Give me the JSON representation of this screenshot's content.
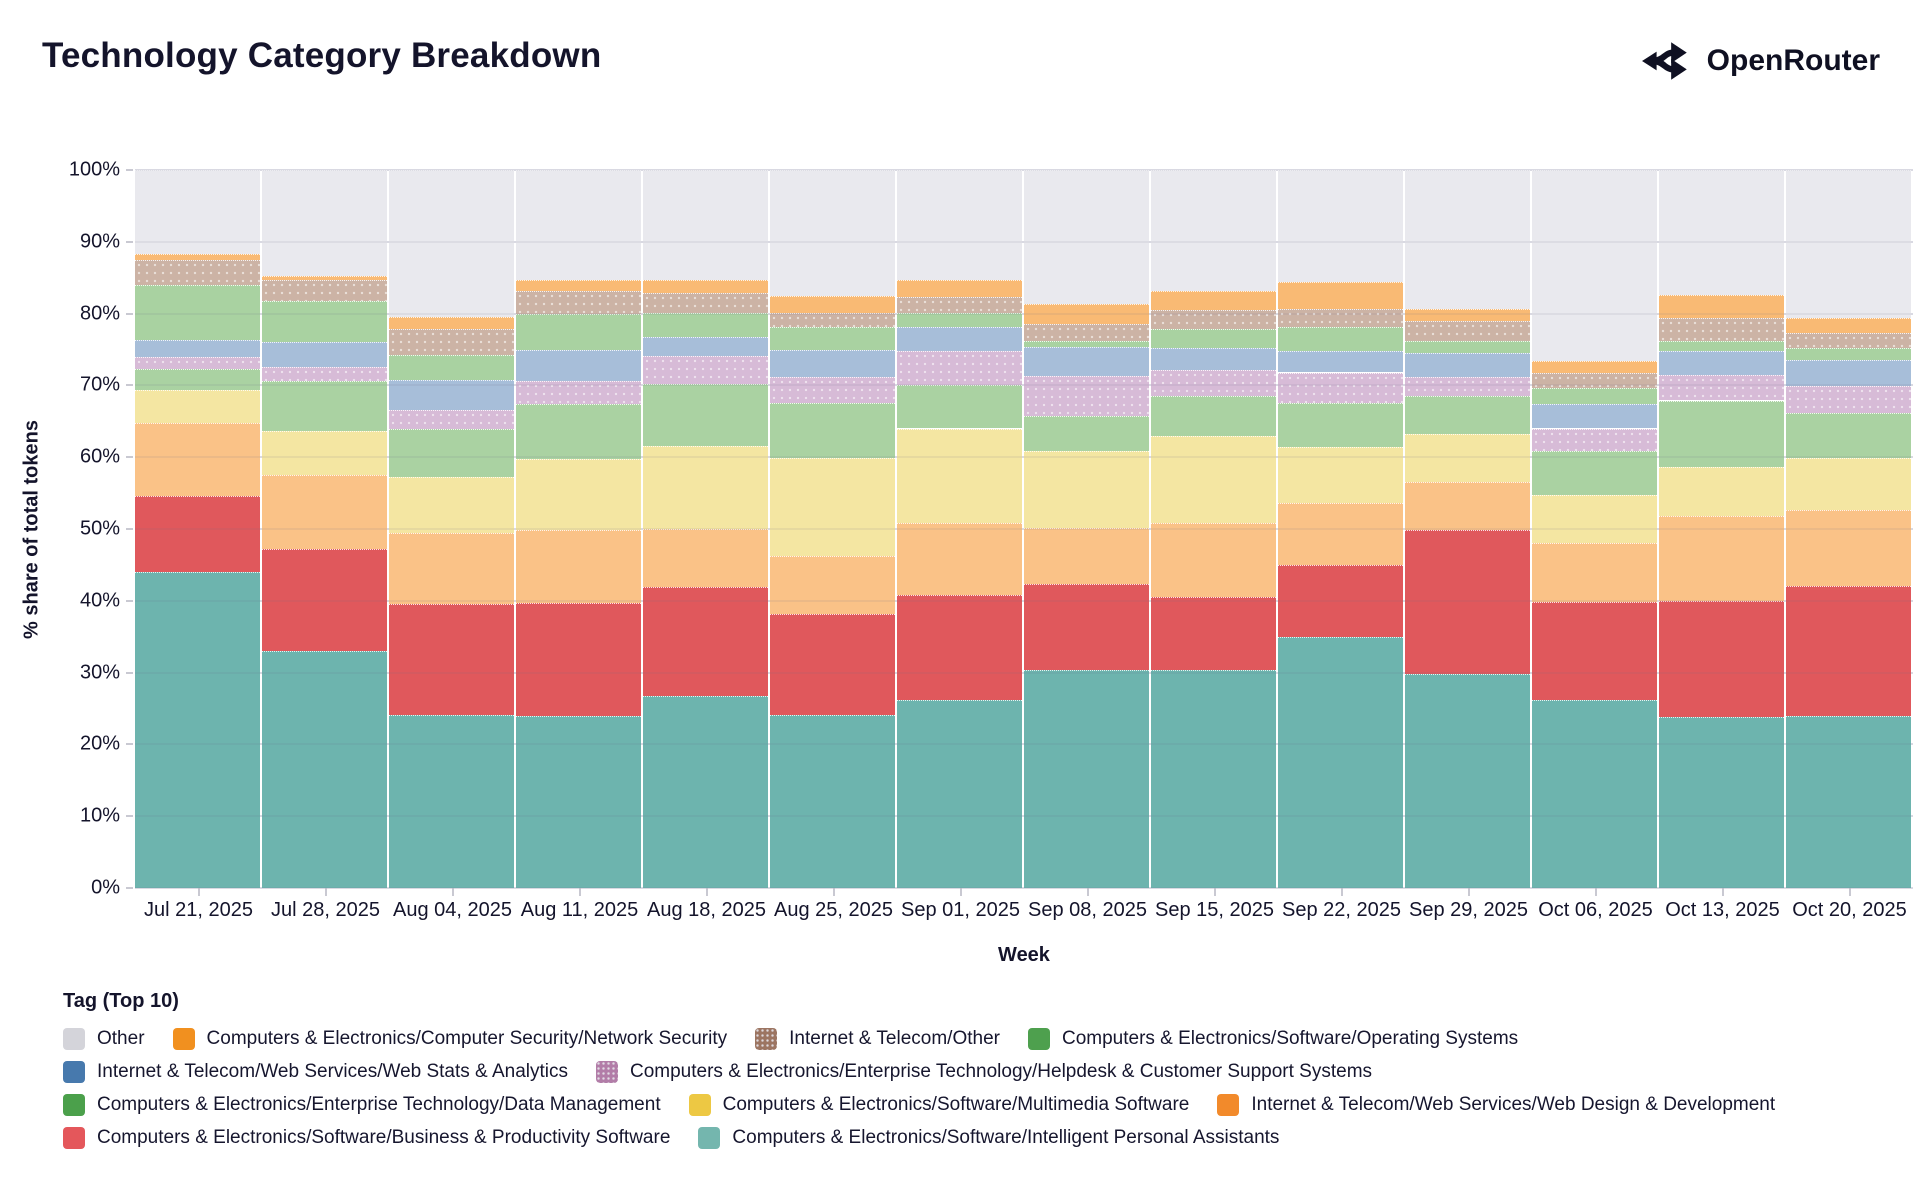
{
  "header": {
    "title": "Technology Category Breakdown",
    "brand": "OpenRouter"
  },
  "chart_data": {
    "type": "bar",
    "stacked": true,
    "title": "Technology Category Breakdown",
    "xlabel": "Week",
    "ylabel": "% share of total tokens",
    "ylim": [
      0,
      100
    ],
    "ytick_step": 10,
    "ytick_suffix": "%",
    "grid": true,
    "legend_title": "Tag (Top 10)",
    "categories": [
      "Jul 21, 2025",
      "Jul 28, 2025",
      "Aug 04, 2025",
      "Aug 11, 2025",
      "Aug 18, 2025",
      "Aug 25, 2025",
      "Sep 01, 2025",
      "Sep 08, 2025",
      "Sep 15, 2025",
      "Sep 22, 2025",
      "Sep 29, 2025",
      "Oct 06, 2025",
      "Oct 13, 2025",
      "Oct 20, 2025"
    ],
    "series": [
      {
        "key": "ipa",
        "name": "Computers & Electronics/Software/Intelligent Personal Assistants",
        "legend_color": "#74b6ae",
        "bar_color": "#6db4ae",
        "pattern": "none",
        "values": [
          44.0,
          33.0,
          24.1,
          24.0,
          26.7,
          24.1,
          26.2,
          30.4,
          30.4,
          34.9,
          29.8,
          26.2,
          23.8,
          24.0
        ]
      },
      {
        "key": "bp",
        "name": "Computers & Electronics/Software/Business & Productivity Software",
        "legend_color": "#e4575b",
        "bar_color": "#e0585c",
        "pattern": "none",
        "values": [
          10.6,
          14.2,
          15.5,
          15.7,
          15.2,
          14.0,
          14.6,
          11.9,
          10.1,
          10.1,
          20.0,
          13.7,
          16.2,
          18.0
        ]
      },
      {
        "key": "wd",
        "name": "Internet & Telecom/Web Services/Web Design & Development",
        "legend_color": "#f28a2b",
        "bar_color": "#fac287",
        "pattern": "none",
        "values": [
          10.1,
          10.3,
          9.9,
          10.2,
          8.1,
          8.1,
          10.1,
          7.8,
          10.4,
          8.6,
          6.8,
          8.1,
          11.8,
          10.7
        ]
      },
      {
        "key": "mm",
        "name": "Computers & Electronics/Software/Multimedia Software",
        "legend_color": "#edc843",
        "bar_color": "#f4e6a2",
        "pattern": "none",
        "values": [
          4.7,
          6.2,
          7.8,
          9.8,
          11.6,
          13.7,
          13.1,
          10.7,
          12.0,
          7.8,
          6.6,
          6.8,
          6.9,
          7.2
        ]
      },
      {
        "key": "dm",
        "name": "Computers & Electronics/Enterprise Technology/Data Management",
        "legend_color": "#4ba04b",
        "bar_color": "#aad2a2",
        "pattern": "none",
        "values": [
          2.9,
          6.9,
          6.6,
          7.7,
          8.6,
          7.6,
          6.0,
          5.0,
          5.6,
          6.2,
          5.3,
          6.0,
          9.2,
          6.2
        ]
      },
      {
        "key": "hd",
        "name": "Computers & Electronics/Enterprise Technology/Helpdesk & Customer Support Systems",
        "legend_color": "#b27da8",
        "bar_color": "#d7bbd7",
        "pattern": "dots",
        "values": [
          1.6,
          1.9,
          2.7,
          3.2,
          3.9,
          3.7,
          4.8,
          5.5,
          3.6,
          4.2,
          2.7,
          3.2,
          3.6,
          3.8
        ]
      },
      {
        "key": "ws",
        "name": "Internet & Telecom/Web Services/Web Stats & Analytics",
        "legend_color": "#4779ad",
        "bar_color": "#a7bed9",
        "pattern": "none",
        "values": [
          2.4,
          3.6,
          4.2,
          4.3,
          2.7,
          3.7,
          3.4,
          4.1,
          3.1,
          3.0,
          3.3,
          3.4,
          3.3,
          3.7
        ]
      },
      {
        "key": "os",
        "name": "Computers & Electronics/Software/Operating Systems",
        "legend_color": "#4ea04e",
        "bar_color": "#a9d2a1",
        "pattern": "none",
        "values": [
          7.7,
          5.6,
          3.4,
          5.0,
          3.3,
          3.3,
          1.9,
          0.8,
          2.7,
          3.3,
          1.7,
          2.2,
          1.4,
          1.6
        ]
      },
      {
        "key": "ito",
        "name": "Internet & Telecom/Other",
        "legend_color": "#9c7562",
        "bar_color": "#ccb3a5",
        "pattern": "dots",
        "values": [
          3.4,
          3.0,
          3.7,
          3.2,
          2.8,
          1.9,
          2.2,
          2.4,
          2.6,
          2.5,
          2.8,
          2.1,
          3.2,
          2.1
        ]
      },
      {
        "key": "ns",
        "name": "Computers & Electronics/Computer Security/Network Security",
        "legend_color": "#f1901f",
        "bar_color": "#f9ba74",
        "pattern": "none",
        "values": [
          0.9,
          0.6,
          1.6,
          1.6,
          1.8,
          2.4,
          2.4,
          2.7,
          2.6,
          3.8,
          1.6,
          1.7,
          3.2,
          2.1
        ]
      },
      {
        "key": "other",
        "name": "Other",
        "legend_color": "#d4d4da",
        "bar_color": "#e9e9ee",
        "pattern": "none",
        "values": [
          11.7,
          14.7,
          20.5,
          15.3,
          15.3,
          17.5,
          15.3,
          18.7,
          16.9,
          15.6,
          19.4,
          26.6,
          17.4,
          20.6
        ]
      }
    ],
    "legend_rows": [
      [
        "other",
        "ns",
        "ito",
        "os"
      ],
      [
        "ws",
        "hd"
      ],
      [
        "dm",
        "mm",
        "wd"
      ],
      [
        "bp",
        "ipa"
      ]
    ],
    "legend_position": "bottom-left"
  }
}
